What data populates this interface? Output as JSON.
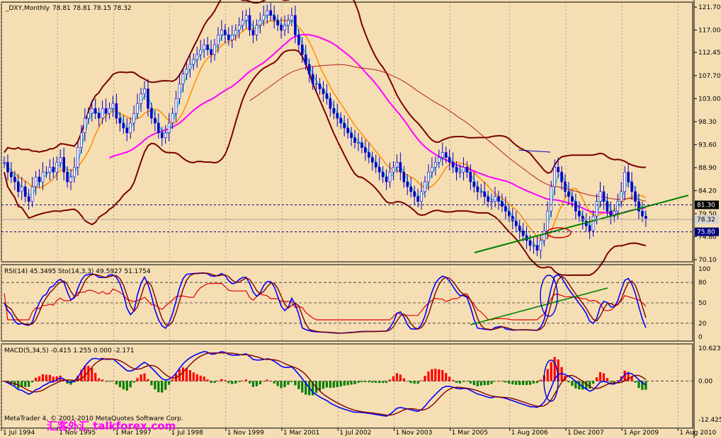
{
  "chart_data": [
    {
      "type": "candlestick",
      "title": "_DXY,Monthly",
      "ohlc_label": "78.81 78.81 78.15 78.32",
      "ylim": [
        70.1,
        121.7
      ],
      "y_ticks": [
        "121.70",
        "117.00",
        "112.45",
        "107.70",
        "103.00",
        "98.30",
        "93.60",
        "88.90",
        "84.20",
        "79.50",
        "74.80",
        "70.10"
      ],
      "markers": [
        {
          "label": "81.30",
          "value": 81.3,
          "color": "#000000",
          "text_color": "#ffffff"
        },
        {
          "label": "78.32",
          "value": 78.32,
          "color": "#d4d4d4",
          "text_color": "#000000"
        },
        {
          "label": "75.80",
          "value": 75.8,
          "color": "#000080",
          "text_color": "#ffffff"
        }
      ],
      "x_labels": [
        "1 Jul 1994",
        "1 Nov 1995",
        "1 Mar 1997",
        "1 Jul 1998",
        "1 Nov 1999",
        "1 Mar 2001",
        "1 Jul 2002",
        "1 Nov 2003",
        "1 Mar 2005",
        "1 Aug 2006",
        "1 Dec 2007",
        "1 Apr 2009",
        "1 Aug 2010"
      ],
      "x_label_positions": [
        0,
        16,
        32,
        48,
        64,
        80,
        96,
        112,
        128,
        145,
        161,
        177,
        193
      ],
      "price": [
        90,
        88,
        87,
        86,
        84,
        85,
        83,
        82,
        85,
        87,
        86,
        88,
        88,
        89,
        88,
        90,
        91,
        88,
        86,
        87,
        89,
        93,
        96,
        99,
        100,
        101,
        100,
        99,
        101,
        100,
        101,
        102,
        99,
        98,
        97,
        96,
        98,
        100,
        102,
        104,
        105,
        101,
        99,
        98,
        96,
        95,
        96,
        98,
        100,
        103,
        106,
        108,
        109,
        110,
        111,
        112,
        113,
        114,
        113,
        112,
        114,
        116,
        117,
        116,
        115,
        116,
        117,
        118,
        119,
        120,
        117,
        116,
        118,
        119,
        120,
        121,
        120,
        119,
        118,
        117,
        118,
        119,
        120,
        116,
        114,
        112,
        110,
        108,
        106,
        106,
        105,
        104,
        103,
        101,
        100,
        99,
        98,
        97,
        96,
        95,
        94,
        94,
        93,
        92,
        91,
        90,
        89,
        88,
        87,
        86,
        88,
        89,
        90,
        88,
        86,
        85,
        84,
        83,
        82,
        84,
        86,
        88,
        89,
        90,
        91,
        92,
        91,
        90,
        89,
        88,
        88,
        89,
        88,
        86,
        85,
        84,
        84,
        83,
        82,
        82,
        83,
        82,
        81,
        80,
        79,
        78,
        77,
        76,
        75,
        74,
        73,
        73,
        72,
        74,
        76,
        80,
        85,
        89,
        88,
        86,
        84,
        83,
        82,
        80,
        79,
        78,
        77,
        76,
        79,
        82,
        84,
        82,
        80,
        79,
        80,
        82,
        84,
        88,
        86,
        84,
        82,
        80,
        79,
        78.5
      ]
    },
    {
      "type": "line",
      "title": "RSI(14) 45.3495  Sto(14,3,3) 49.5927 51.1754",
      "ylim": [
        0,
        100
      ],
      "y_ticks": [
        "100",
        "80",
        "50",
        "20",
        "0"
      ]
    },
    {
      "type": "bar",
      "title": "MACD(5,34,5) -0.415 1.255 0.000 -2.171",
      "ylim": [
        -12.425,
        10.623
      ],
      "y_ticks": [
        "10.623",
        "0.00",
        "-12.425"
      ]
    }
  ],
  "footer": {
    "copyright": "MetaTrader 4, © 2001-2010 MetaQuotes Software Corp.",
    "watermark": "汇客外汇 talkforex.com"
  }
}
